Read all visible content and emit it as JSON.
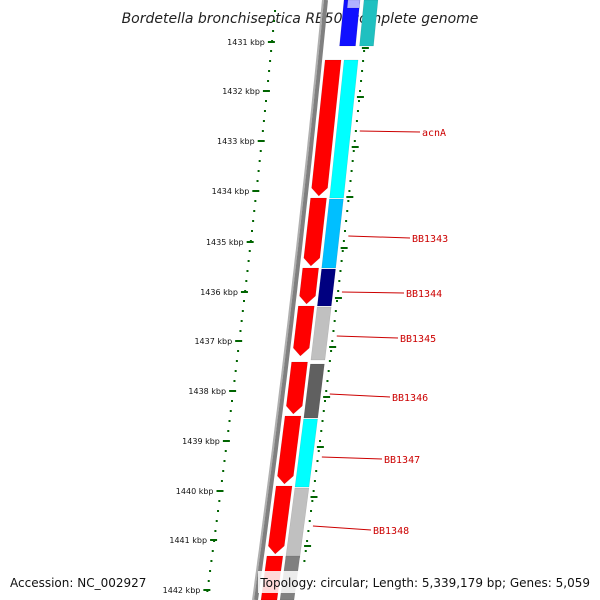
{
  "title": "Bordetella bronchiseptica RB50, complete genome",
  "footer": {
    "accession": "Accession: NC_002927",
    "summary": "Topology: circular; Length: 5,339,179 bp; Genes: 5,059"
  },
  "ticks": [
    "1431 kbp",
    "1432 kbp",
    "1433 kbp",
    "1434 kbp",
    "1435 kbp",
    "1436 kbp",
    "1437 kbp",
    "1438 kbp",
    "1439 kbp",
    "1440 kbp",
    "1441 kbp",
    "1442 kbp"
  ],
  "genes": [
    {
      "label": "acnA",
      "color": "#00ffff"
    },
    {
      "label": "BB1343",
      "color": "#00bfff"
    },
    {
      "label": "BB1344",
      "color": "#000080"
    },
    {
      "label": "BB1345",
      "color": "#c0c0c0"
    },
    {
      "label": "BB1346",
      "color": "#606060"
    },
    {
      "label": "BB1347",
      "color": "#00ffff"
    },
    {
      "label": "BB1348",
      "color": "#c0c0c0"
    }
  ],
  "colors": {
    "tick": "#006400",
    "forward_strand": "#ff0000",
    "backbone": "#808080",
    "label": "#cc0000"
  }
}
